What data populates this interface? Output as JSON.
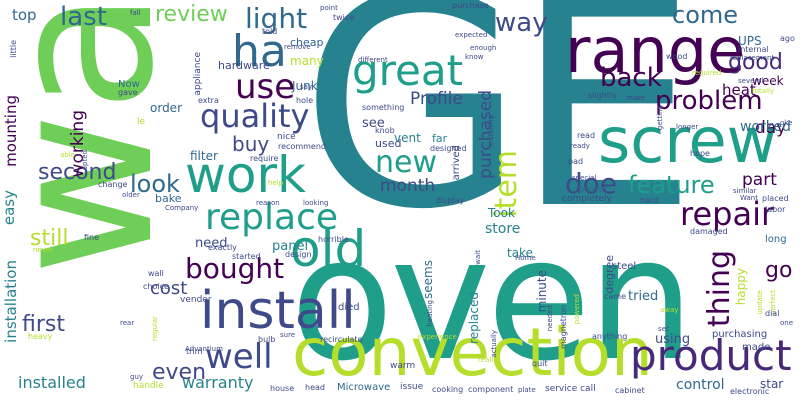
{
  "palette": {
    "dark_purple": "#440154",
    "purple": "#482878",
    "indigo": "#3e4a89",
    "blue": "#31688e",
    "teal_blue": "#26828e",
    "teal": "#1f9e89",
    "green": "#35b779",
    "light_green": "#6ece58",
    "lime": "#b5de2b",
    "yellow": "#fde725"
  },
  "words": [
    "GE",
    "oven",
    "wa",
    "convection",
    "range",
    "screw",
    "install",
    "great",
    "old",
    "work",
    "ha",
    "product",
    "replace",
    "repair",
    "problem",
    "well",
    "new",
    "feature",
    "item",
    "doe",
    "quality",
    "bought",
    "use",
    "back",
    "light",
    "way",
    "come",
    "good",
    "thing",
    "last",
    "review",
    "look",
    "go",
    "first",
    "even",
    "second",
    "still",
    "buy",
    "cost",
    "installed",
    "warranty",
    "installation",
    "easy",
    "working",
    "mounting",
    "top",
    "day",
    "part",
    "month",
    "heat",
    "week",
    "Profile",
    "purchased",
    "worked",
    "store",
    "panel",
    "need",
    "Took",
    "take",
    "UPS",
    "tried",
    "happy",
    "control",
    "using",
    "purchasing",
    "made",
    "long",
    "vent",
    "far",
    "seems",
    "minute",
    "replaced",
    "degree",
    "power",
    "steel",
    "star",
    "hardware",
    "filter",
    "order",
    "Junk",
    "many",
    "Now",
    "cheap",
    "told",
    "fall",
    "twice",
    "purchase",
    "point",
    "ago",
    "internal",
    "several",
    "wood",
    "hope",
    "read",
    "pad",
    "ready",
    "vender",
    "handle",
    "Microwave",
    "head",
    "issue",
    "cooking",
    "component",
    "plate",
    "service call",
    "cabinet",
    "electronic",
    "warm",
    "recirculate",
    "died",
    "bulb",
    "trim",
    "guy",
    "choice",
    "wall",
    "rear",
    "heavy",
    "fine",
    "never",
    "able",
    "change",
    "bake",
    "Company",
    "older",
    "exactly",
    "started",
    "design",
    "horrible",
    "see",
    "used",
    "arrived",
    "knob",
    "designed",
    "display",
    "completely",
    "hard",
    "Want",
    "placed",
    "labor",
    "damaged",
    "similar",
    "special",
    "something",
    "hole",
    "nice",
    "recommend",
    "require",
    "help",
    "reason",
    "looking",
    "appliance",
    "extra",
    "gave",
    "opted",
    "le",
    "top",
    "little",
    "different",
    "know",
    "enough",
    "expected",
    "installing",
    "slightly",
    "getting",
    "longer",
    "make",
    "required",
    "replacement",
    "totally",
    "oke",
    "update",
    "perfect",
    "dial",
    "one",
    "set",
    "came",
    "away",
    "powered",
    "magnetron",
    "needed",
    "actually",
    "really",
    "quit",
    "anything",
    "experience",
    "Home",
    "wait",
    "sure",
    "regular",
    "Advantium",
    "house",
    "heating",
    "say",
    "remove",
    "look",
    "top"
  ]
}
